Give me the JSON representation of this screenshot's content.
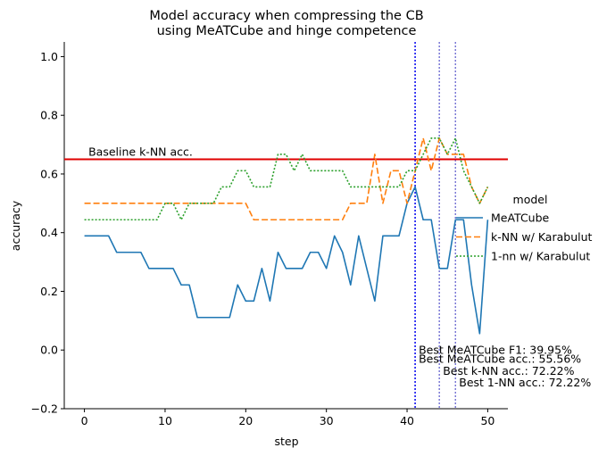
{
  "chart_data": {
    "type": "line",
    "title_line1": "Model accuracy when compressing the CB",
    "title_line2": "using MeATCube and hinge competence",
    "xlabel": "step",
    "ylabel": "accuracy",
    "xlim": [
      -2.5,
      52.5
    ],
    "ylim": [
      -0.2,
      1.05
    ],
    "xticks": [
      0,
      10,
      20,
      30,
      40,
      50
    ],
    "yticks": [
      -0.2,
      0.0,
      0.2,
      0.4,
      0.6,
      0.8,
      1.0
    ],
    "ytick_labels": [
      "−0.2",
      "0.0",
      "0.2",
      "0.4",
      "0.6",
      "0.8",
      "1.0"
    ],
    "legend_title": "model",
    "legend_placement": "center-right",
    "grid": false,
    "baseline": {
      "label": "Baseline k-NN acc.",
      "value": 0.65,
      "color": "#e00000"
    },
    "vlines": [
      {
        "x": 41,
        "color": "#0000ee",
        "style": "dotted"
      },
      {
        "x": 44,
        "color": "#7b79d6",
        "style": "dotted"
      },
      {
        "x": 46,
        "color": "#7b79d6",
        "style": "dotted"
      }
    ],
    "annotations": [
      {
        "text": "Best MeATCube F1: 39.95%",
        "x": 41,
        "y": 0.0
      },
      {
        "text": "Best MeATCube acc.: 55.56%",
        "x": 41,
        "y": -0.03
      },
      {
        "text": "Best k-NN acc.: 72.22%",
        "x": 44,
        "y": -0.07
      },
      {
        "text": "Best 1-NN acc.: 72.22%",
        "x": 46,
        "y": -0.11
      }
    ],
    "x": [
      0,
      1,
      2,
      3,
      4,
      5,
      6,
      7,
      8,
      9,
      10,
      11,
      12,
      13,
      14,
      15,
      16,
      17,
      18,
      19,
      20,
      21,
      22,
      23,
      24,
      25,
      26,
      27,
      28,
      29,
      30,
      31,
      32,
      33,
      34,
      35,
      36,
      37,
      38,
      39,
      40,
      41,
      42,
      43,
      44,
      45,
      46,
      47,
      48,
      49,
      50
    ],
    "series": [
      {
        "name": "MeATCube",
        "color": "#1f77b4",
        "dash": "",
        "values": [
          0.389,
          0.389,
          0.389,
          0.389,
          0.333,
          0.333,
          0.333,
          0.333,
          0.278,
          0.278,
          0.278,
          0.278,
          0.222,
          0.222,
          0.111,
          0.111,
          0.111,
          0.111,
          0.111,
          0.222,
          0.167,
          0.167,
          0.278,
          0.167,
          0.333,
          0.278,
          0.278,
          0.278,
          0.333,
          0.333,
          0.278,
          0.389,
          0.333,
          0.222,
          0.389,
          0.278,
          0.167,
          0.389,
          0.389,
          0.389,
          0.5,
          0.556,
          0.444,
          0.444,
          0.278,
          0.278,
          0.444,
          0.444,
          0.222,
          0.056,
          0.444
        ]
      },
      {
        "name": "k-NN w/ Karabulut",
        "color": "#ff7f0e",
        "dash": "7,3",
        "values": [
          0.5,
          0.5,
          0.5,
          0.5,
          0.5,
          0.5,
          0.5,
          0.5,
          0.5,
          0.5,
          0.5,
          0.5,
          0.5,
          0.5,
          0.5,
          0.5,
          0.5,
          0.5,
          0.5,
          0.5,
          0.5,
          0.444,
          0.444,
          0.444,
          0.444,
          0.444,
          0.444,
          0.444,
          0.444,
          0.444,
          0.444,
          0.444,
          0.444,
          0.5,
          0.5,
          0.5,
          0.667,
          0.5,
          0.611,
          0.611,
          0.5,
          0.611,
          0.722,
          0.611,
          0.722,
          0.667,
          0.667,
          0.667,
          0.556,
          0.5,
          0.556
        ]
      },
      {
        "name": "1-nn w/ Karabulut",
        "color": "#2ca02c",
        "dash": "2,2",
        "values": [
          0.444,
          0.444,
          0.444,
          0.444,
          0.444,
          0.444,
          0.444,
          0.444,
          0.444,
          0.444,
          0.5,
          0.5,
          0.444,
          0.5,
          0.5,
          0.5,
          0.5,
          0.556,
          0.556,
          0.611,
          0.611,
          0.556,
          0.556,
          0.556,
          0.667,
          0.667,
          0.611,
          0.667,
          0.611,
          0.611,
          0.611,
          0.611,
          0.611,
          0.556,
          0.556,
          0.556,
          0.556,
          0.556,
          0.556,
          0.556,
          0.611,
          0.611,
          0.667,
          0.722,
          0.722,
          0.667,
          0.722,
          0.611,
          0.556,
          0.5,
          0.556
        ]
      }
    ]
  }
}
